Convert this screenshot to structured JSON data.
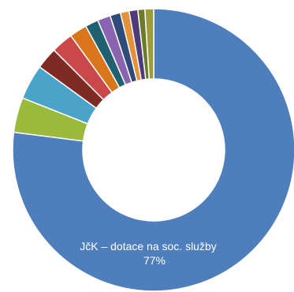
{
  "chart_data": {
    "type": "pie",
    "donut": true,
    "title": "",
    "labels": [
      "JčK – dotace na soc. služby",
      "",
      "",
      "",
      "",
      "",
      "",
      "",
      "",
      "",
      "",
      "",
      ""
    ],
    "values": [
      77,
      4,
      4,
      2.5,
      2.5,
      2,
      1.5,
      1.5,
      1.2,
      1,
      1,
      0.8,
      1
    ],
    "colors": [
      "#4f7ebd",
      "#9aba3c",
      "#4aa3c8",
      "#7e2a25",
      "#c9494a",
      "#d9761c",
      "#1f6170",
      "#8a64b1",
      "#2f4b7a",
      "#e4913b",
      "#4d3b7a",
      "#6b7b2a",
      "#9c9c3c"
    ],
    "main_label": {
      "name": "JčK – dotace na soc. služby",
      "percent": "77%"
    },
    "legend": "none"
  }
}
